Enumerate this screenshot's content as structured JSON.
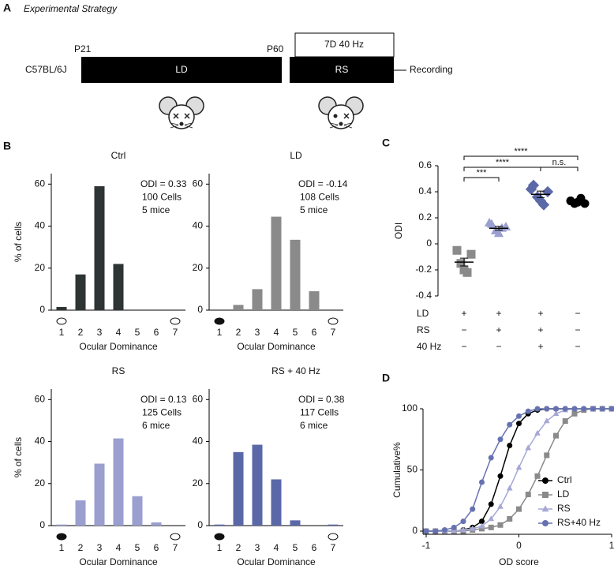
{
  "panel_labels": [
    "A",
    "B",
    "C",
    "D"
  ],
  "strategy": {
    "title": "Experimental Strategy",
    "strain": "C57BL/6J",
    "start": "P21",
    "switch": "P60",
    "phase1": "LD",
    "phase2": "RS",
    "treatment": "7D 40 Hz",
    "end": "Recording"
  },
  "chart_data": [
    {
      "type": "bar",
      "title": "Ctrl",
      "annotations": [
        "ODI = 0.33",
        "100 Cells",
        "5 mice"
      ],
      "ylabel": "% of cells",
      "xlabel": "Ocular Dominance",
      "categories": [
        "1",
        "2",
        "3",
        "4",
        "5",
        "6",
        "7"
      ],
      "values": [
        1.5,
        17,
        59,
        22,
        0,
        0,
        0
      ],
      "color": "#2e3333",
      "ylim": [
        0,
        65
      ],
      "yticks": [
        0,
        20,
        40,
        60
      ]
    },
    {
      "type": "bar",
      "title": "LD",
      "annotations": [
        "ODI = -0.14",
        "108 Cells",
        "5 mice"
      ],
      "xlabel": "Ocular Dominance",
      "categories": [
        "1",
        "2",
        "3",
        "4",
        "5",
        "6",
        "7"
      ],
      "values": [
        0,
        2.5,
        10,
        44.5,
        33.5,
        9,
        0
      ],
      "color": "#8a8a8a",
      "ylim": [
        0,
        65
      ],
      "yticks": [
        0,
        20,
        40,
        60
      ]
    },
    {
      "type": "bar",
      "title": "RS",
      "annotations": [
        "ODI = 0.13",
        "125 Cells",
        "6 mice"
      ],
      "ylabel": "% of cells",
      "xlabel": "Ocular Dominance",
      "categories": [
        "1",
        "2",
        "3",
        "4",
        "5",
        "6",
        "7"
      ],
      "values": [
        0.5,
        12,
        29.5,
        41.5,
        14,
        1.5,
        0
      ],
      "color": "#9a9fcf",
      "ylim": [
        0,
        65
      ],
      "yticks": [
        0,
        20,
        40,
        60
      ]
    },
    {
      "type": "bar",
      "title": "RS + 40 Hz",
      "annotations": [
        "ODI = 0.38",
        "117 Cells",
        "6 mice"
      ],
      "xlabel": "Ocular Dominance",
      "categories": [
        "1",
        "2",
        "3",
        "4",
        "5",
        "6",
        "7"
      ],
      "values": [
        0.5,
        35,
        38.5,
        22,
        2.5,
        0,
        0.5
      ],
      "color": "#5b68a8",
      "ylim": [
        0,
        65
      ],
      "yticks": [
        0,
        20,
        40,
        60
      ]
    },
    {
      "type": "dot",
      "ylabel": "ODI",
      "ylim": [
        -0.4,
        0.6
      ],
      "yticks": [
        -0.4,
        -0.2,
        0,
        0.2,
        0.4,
        0.6
      ],
      "series": [
        {
          "marker": "square",
          "color": "#8a8a8a",
          "values": [
            -0.05,
            -0.08,
            -0.15,
            -0.22,
            -0.2
          ],
          "mean": -0.14,
          "sem": 0.03
        },
        {
          "marker": "triangle",
          "color": "#9a9fcf",
          "values": [
            0.15,
            0.13,
            0.1,
            0.12,
            0.08,
            0.16
          ],
          "mean": 0.12,
          "sem": 0.015
        },
        {
          "marker": "diamond",
          "color": "#5b68a8",
          "values": [
            0.45,
            0.4,
            0.36,
            0.3,
            0.33,
            0.42
          ],
          "mean": 0.38,
          "sem": 0.025
        },
        {
          "marker": "circle",
          "color": "#000000",
          "values": [
            0.33,
            0.31,
            0.31,
            0.35,
            0.32
          ],
          "mean": 0.33,
          "sem": 0.01
        }
      ],
      "significance": [
        "***",
        "****",
        "****",
        "n.s."
      ],
      "conditions": [
        {
          "label": "LD",
          "signs": [
            "+",
            "+",
            "+",
            "−"
          ]
        },
        {
          "label": "RS",
          "signs": [
            "−",
            "+",
            "+",
            "−"
          ]
        },
        {
          "label": "40 Hz",
          "signs": [
            "−",
            "−",
            "+",
            "−"
          ]
        }
      ]
    },
    {
      "type": "line",
      "ylabel": "Cumulative%",
      "xlabel": "OD score",
      "xlim": [
        -1,
        1
      ],
      "xticks": [
        -1,
        0,
        1
      ],
      "ylim": [
        0,
        100
      ],
      "yticks": [
        0,
        50,
        100
      ],
      "legend": "lower right",
      "x": [
        -1,
        -0.9,
        -0.8,
        -0.7,
        -0.6,
        -0.5,
        -0.4,
        -0.3,
        -0.2,
        -0.1,
        0,
        0.1,
        0.2,
        0.3,
        0.4,
        0.5,
        0.6,
        0.7,
        0.8,
        0.9,
        1
      ],
      "series": [
        {
          "name": "Ctrl",
          "color": "#000000",
          "marker": "circle",
          "values": [
            0,
            0,
            0,
            0,
            1,
            3,
            8,
            22,
            45,
            70,
            88,
            96,
            99,
            100,
            100,
            100,
            100,
            100,
            100,
            100,
            100
          ]
        },
        {
          "name": "LD",
          "color": "#8a8a8a",
          "marker": "square",
          "values": [
            0,
            0,
            0,
            0,
            0,
            1,
            2,
            3,
            5,
            10,
            18,
            30,
            45,
            62,
            78,
            90,
            96,
            99,
            100,
            100,
            100
          ]
        },
        {
          "name": "RS",
          "color": "#a5a8d4",
          "marker": "triangle",
          "values": [
            0,
            0,
            0,
            0,
            1,
            2,
            4,
            10,
            20,
            35,
            52,
            68,
            80,
            90,
            96,
            99,
            100,
            100,
            100,
            100,
            100
          ]
        },
        {
          "name": "RS+40 Hz",
          "color": "#6672b0",
          "marker": "circle",
          "values": [
            0,
            0,
            1,
            3,
            8,
            18,
            40,
            60,
            75,
            87,
            94,
            98,
            100,
            100,
            100,
            100,
            100,
            100,
            100,
            100,
            100
          ]
        }
      ]
    }
  ]
}
